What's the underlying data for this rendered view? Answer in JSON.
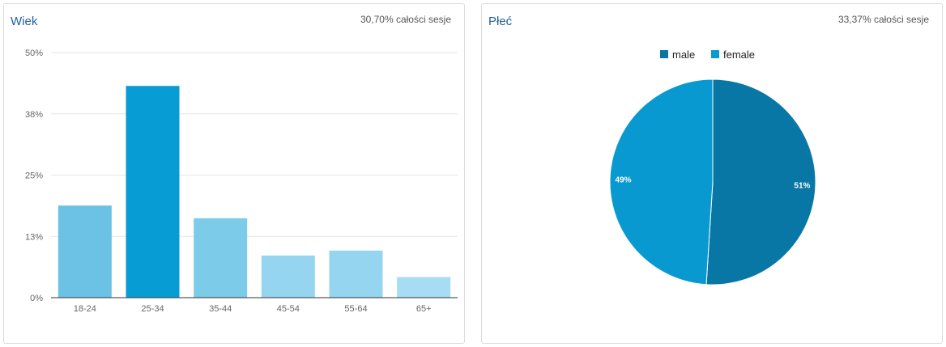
{
  "panels": {
    "age": {
      "title": "Wiek",
      "subtitle": "30,70% całości sesje"
    },
    "gender": {
      "title": "Płeć",
      "subtitle": "33,37% całości sesje"
    }
  },
  "chart_data": [
    {
      "type": "bar",
      "title": "Wiek",
      "categories": [
        "18-24",
        "25-34",
        "35-44",
        "45-54",
        "55-64",
        "65+"
      ],
      "values": [
        18.8,
        43.2,
        16.2,
        8.6,
        9.6,
        4.2
      ],
      "yticks": [
        0,
        12.5,
        25,
        37.5,
        50
      ],
      "ytick_labels": [
        "0%",
        "13%",
        "25%",
        "38%",
        "50%"
      ],
      "ylim": [
        0,
        50
      ],
      "grid": true,
      "colors": [
        "#6cc2e4",
        "#079cd4",
        "#7ccbe8",
        "#95d5ef",
        "#95d5ef",
        "#a6ddf2"
      ]
    },
    {
      "type": "pie",
      "title": "Płeć",
      "labels": [
        "male",
        "female"
      ],
      "values": [
        51,
        49
      ],
      "value_labels": [
        "51%",
        "49%"
      ],
      "colors": [
        "#0877a5",
        "#0899d0"
      ],
      "legend": "top"
    }
  ]
}
